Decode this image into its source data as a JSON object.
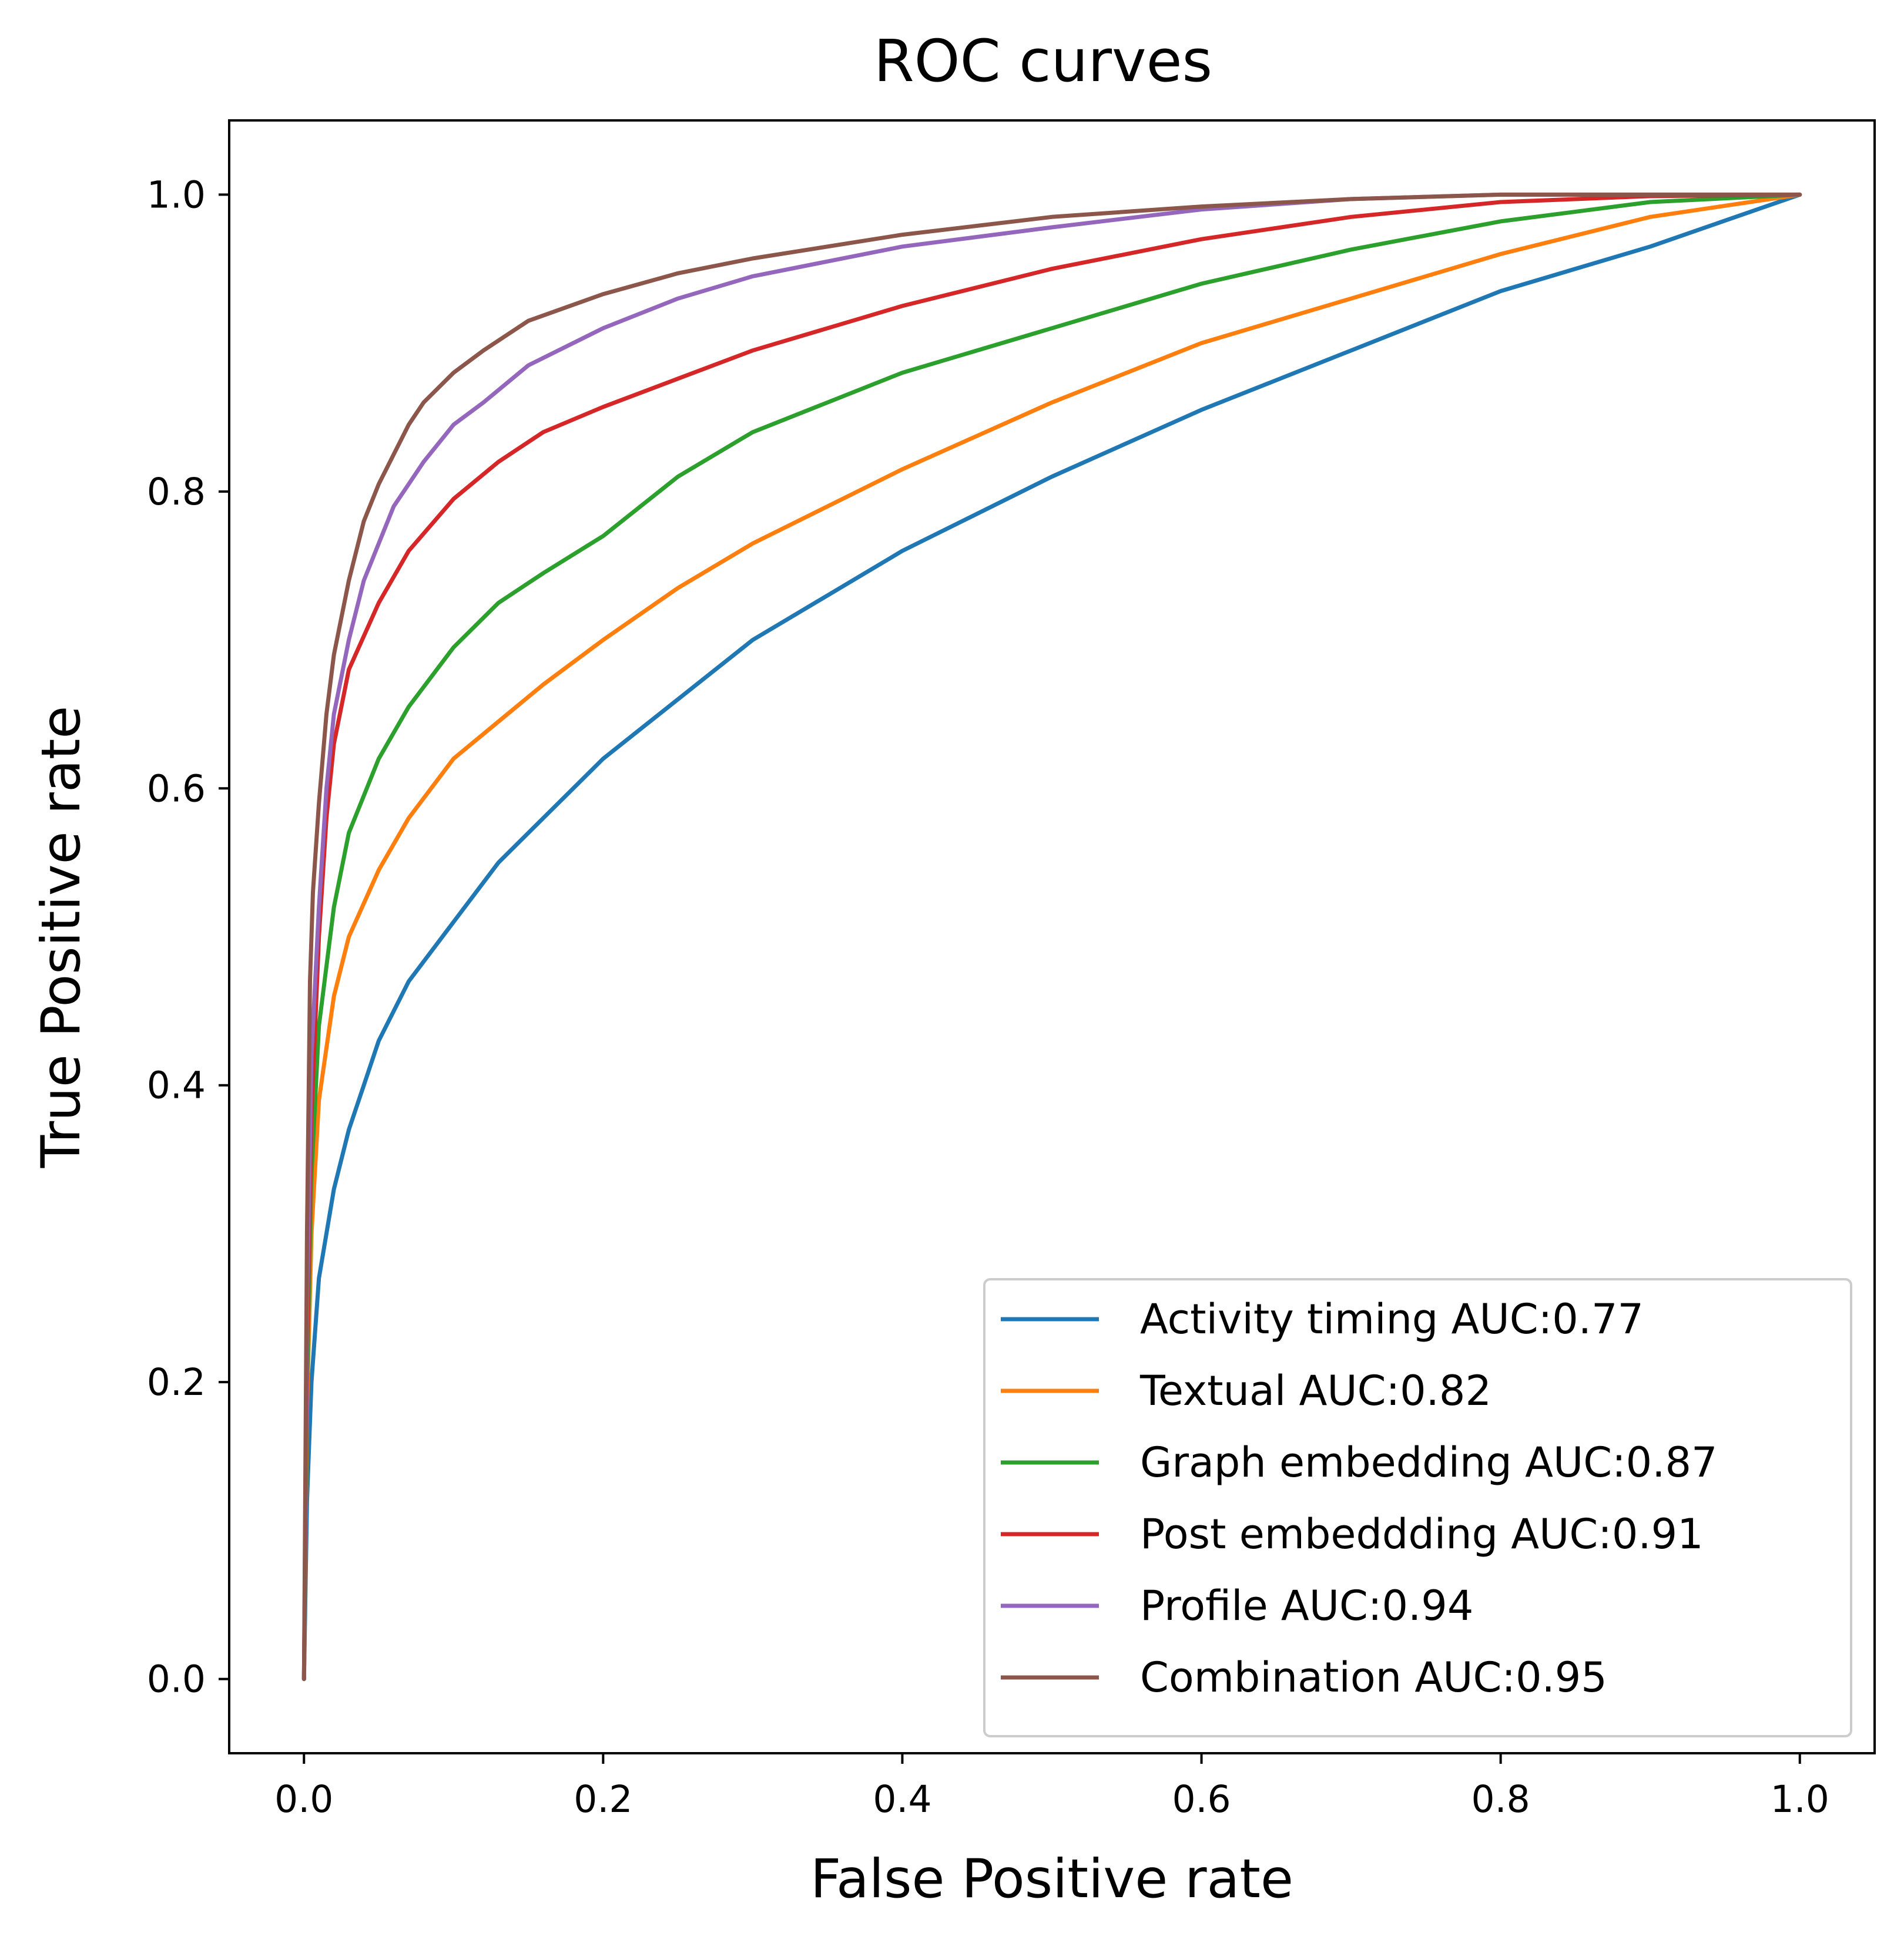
{
  "chart_data": {
    "type": "line",
    "title": "ROC curves",
    "xlabel": "False Positive rate",
    "ylabel": "True Positive rate",
    "xlim": [
      -0.05,
      1.05
    ],
    "ylim": [
      -0.05,
      1.05
    ],
    "xticks": [
      0.0,
      0.2,
      0.4,
      0.6,
      0.8,
      1.0
    ],
    "yticks": [
      0.0,
      0.2,
      0.4,
      0.6,
      0.8,
      1.0
    ],
    "xtick_labels": [
      "0.0",
      "0.2",
      "0.4",
      "0.6",
      "0.8",
      "1.0"
    ],
    "ytick_labels": [
      "0.0",
      "0.2",
      "0.4",
      "0.6",
      "0.8",
      "1.0"
    ],
    "grid": false,
    "legend_position": "lower-right",
    "series": [
      {
        "name": "Activity timing AUC:0.77",
        "color": "#1f77b4",
        "x": [
          0,
          0.002,
          0.005,
          0.01,
          0.02,
          0.03,
          0.04,
          0.05,
          0.07,
          0.1,
          0.13,
          0.16,
          0.2,
          0.25,
          0.3,
          0.35,
          0.4,
          0.5,
          0.6,
          0.7,
          0.8,
          0.9,
          1.0
        ],
        "y": [
          0,
          0.12,
          0.2,
          0.27,
          0.33,
          0.37,
          0.4,
          0.43,
          0.47,
          0.51,
          0.55,
          0.58,
          0.62,
          0.66,
          0.7,
          0.73,
          0.76,
          0.81,
          0.855,
          0.895,
          0.935,
          0.965,
          1.0
        ]
      },
      {
        "name": "Textual AUC:0.82",
        "color": "#ff7f0e",
        "x": [
          0,
          0.002,
          0.005,
          0.01,
          0.02,
          0.03,
          0.05,
          0.07,
          0.1,
          0.13,
          0.16,
          0.2,
          0.25,
          0.3,
          0.4,
          0.5,
          0.6,
          0.7,
          0.8,
          0.9,
          1.0
        ],
        "y": [
          0,
          0.18,
          0.3,
          0.39,
          0.46,
          0.5,
          0.545,
          0.58,
          0.62,
          0.645,
          0.67,
          0.7,
          0.735,
          0.765,
          0.815,
          0.86,
          0.9,
          0.93,
          0.96,
          0.985,
          1.0
        ]
      },
      {
        "name": "Graph embedding AUC:0.87",
        "color": "#2ca02c",
        "x": [
          0,
          0.002,
          0.005,
          0.01,
          0.02,
          0.03,
          0.05,
          0.07,
          0.1,
          0.13,
          0.16,
          0.2,
          0.25,
          0.3,
          0.4,
          0.5,
          0.6,
          0.7,
          0.8,
          0.9,
          1.0
        ],
        "y": [
          0,
          0.2,
          0.34,
          0.44,
          0.52,
          0.57,
          0.62,
          0.655,
          0.695,
          0.725,
          0.745,
          0.77,
          0.81,
          0.84,
          0.88,
          0.91,
          0.94,
          0.963,
          0.982,
          0.995,
          1.0
        ]
      },
      {
        "name": "Post embeddding AUC:0.91",
        "color": "#d62728",
        "x": [
          0,
          0.002,
          0.005,
          0.01,
          0.015,
          0.02,
          0.03,
          0.05,
          0.07,
          0.1,
          0.13,
          0.16,
          0.2,
          0.25,
          0.3,
          0.4,
          0.5,
          0.6,
          0.7,
          0.8,
          0.9,
          1.0
        ],
        "y": [
          0,
          0.22,
          0.38,
          0.5,
          0.58,
          0.63,
          0.68,
          0.725,
          0.76,
          0.795,
          0.82,
          0.84,
          0.857,
          0.876,
          0.895,
          0.925,
          0.95,
          0.97,
          0.985,
          0.995,
          0.999,
          1.0
        ]
      },
      {
        "name": "Profile AUC:0.94",
        "color": "#9467bd",
        "x": [
          0,
          0.002,
          0.005,
          0.01,
          0.015,
          0.02,
          0.03,
          0.04,
          0.05,
          0.06,
          0.07,
          0.08,
          0.1,
          0.12,
          0.15,
          0.2,
          0.25,
          0.3,
          0.4,
          0.5,
          0.6,
          0.7,
          0.8,
          0.9,
          1.0
        ],
        "y": [
          0,
          0.25,
          0.42,
          0.52,
          0.6,
          0.65,
          0.7,
          0.74,
          0.765,
          0.79,
          0.805,
          0.82,
          0.845,
          0.86,
          0.885,
          0.91,
          0.93,
          0.945,
          0.965,
          0.978,
          0.99,
          0.997,
          1.0,
          1.0,
          1.0
        ]
      },
      {
        "name": "Combination AUC:0.95",
        "color": "#8c564b",
        "x": [
          0,
          0.002,
          0.004,
          0.006,
          0.01,
          0.015,
          0.02,
          0.03,
          0.04,
          0.05,
          0.06,
          0.07,
          0.08,
          0.1,
          0.12,
          0.15,
          0.2,
          0.25,
          0.3,
          0.4,
          0.5,
          0.6,
          0.7,
          0.8,
          0.9,
          1.0
        ],
        "y": [
          0,
          0.3,
          0.47,
          0.53,
          0.59,
          0.65,
          0.69,
          0.74,
          0.78,
          0.805,
          0.825,
          0.845,
          0.86,
          0.88,
          0.895,
          0.915,
          0.933,
          0.947,
          0.957,
          0.973,
          0.985,
          0.992,
          0.997,
          1.0,
          1.0,
          1.0
        ]
      }
    ]
  }
}
